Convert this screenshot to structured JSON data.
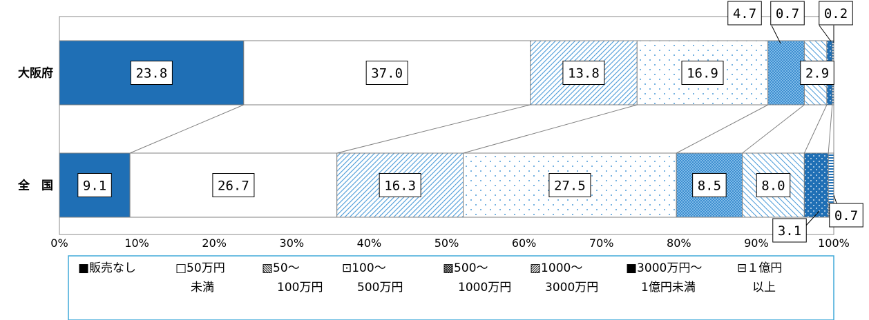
{
  "chart_data": {
    "type": "bar",
    "orientation": "horizontal",
    "stacked": "percent",
    "categories": [
      "大阪府",
      "全　国"
    ],
    "series": [
      {
        "name": "■販売なし",
        "legend_lines": [
          "■販売なし"
        ],
        "values": [
          23.8,
          9.1
        ],
        "color": "#1f6fb5",
        "pattern": "solid"
      },
      {
        "name": "□50万円未満",
        "legend_lines": [
          "□50万円",
          "未満"
        ],
        "values": [
          37.0,
          26.7
        ],
        "color": "#ffffff",
        "pattern": "none"
      },
      {
        "name": "▧50～100万円",
        "legend_lines": [
          "▧50～",
          "100万円"
        ],
        "values": [
          13.8,
          16.3
        ],
        "color": "#5aa7e0",
        "pattern": "diagonal-dense"
      },
      {
        "name": "⊡100～500万円",
        "legend_lines": [
          "⊡100～",
          "500万円"
        ],
        "values": [
          16.9,
          27.5
        ],
        "color": "#5aa7e0",
        "pattern": "dots"
      },
      {
        "name": "▩500～1000万円",
        "legend_lines": [
          "▩500～",
          "1000万円"
        ],
        "values": [
          4.7,
          8.5
        ],
        "color": "#5aa7e0",
        "pattern": "crosshatch"
      },
      {
        "name": "▨1000～3000万円",
        "legend_lines": [
          "▨1000～",
          "3000万円"
        ],
        "values": [
          2.9,
          8.0
        ],
        "color": "#5aa7e0",
        "pattern": "diagonal-wide"
      },
      {
        "name": "■3000万円～1億円未満",
        "legend_lines": [
          "■3000万円～",
          "1億円未満"
        ],
        "values": [
          0.7,
          3.1
        ],
        "color": "#1f6fb5",
        "pattern": "dots-on-blue"
      },
      {
        "name": "⊟１億円以上",
        "legend_lines": [
          "⊟１億円",
          "以上"
        ],
        "values": [
          0.2,
          0.7
        ],
        "color": "#1f6fb5",
        "pattern": "horizontal"
      }
    ],
    "value_labels": [
      [
        "23.8",
        "37.0",
        "13.8",
        "16.9",
        "4.7",
        "2.9",
        "0.7",
        "0.2"
      ],
      [
        "9.1",
        "26.7",
        "16.3",
        "27.5",
        "8.5",
        "8.0",
        "3.1",
        "0.7"
      ]
    ],
    "xlim": [
      0,
      100
    ],
    "xticks": [
      "0%",
      "10%",
      "20%",
      "30%",
      "40%",
      "50%",
      "60%",
      "70%",
      "80%",
      "90%",
      "100%"
    ],
    "series_lines": true,
    "legend_position": "bottom",
    "title": "",
    "xlabel": "",
    "ylabel": ""
  }
}
